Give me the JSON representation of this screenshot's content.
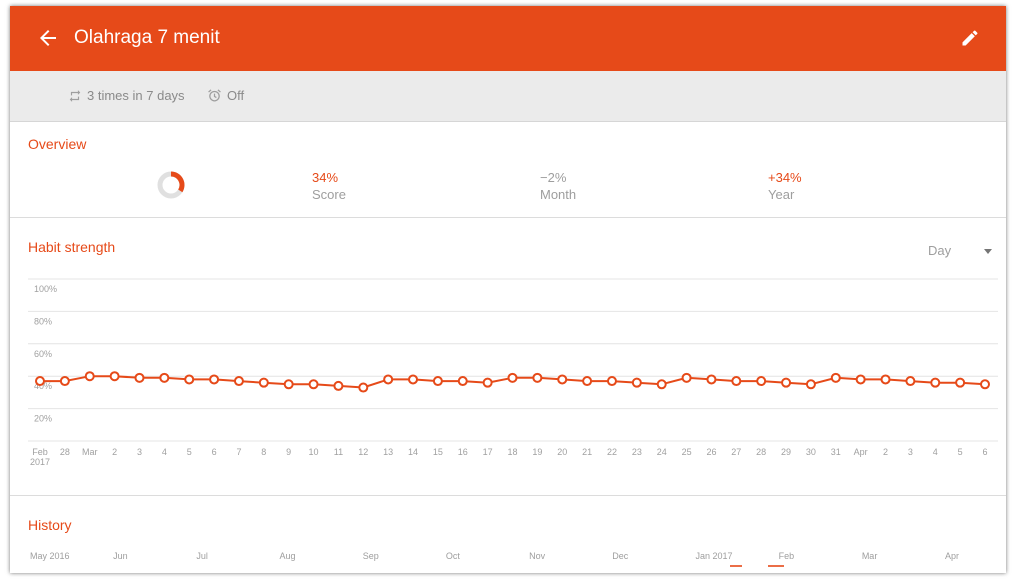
{
  "app_bar": {
    "title": "Olahraga 7 menit",
    "back_icon": "arrow-left-icon",
    "edit_icon": "pencil-icon",
    "color": "#e64a19"
  },
  "subheader": {
    "frequency": "3 times in 7 days",
    "frequency_icon": "repeat-icon",
    "reminder": "Off",
    "reminder_icon": "alarm-clock-icon"
  },
  "overview": {
    "title": "Overview",
    "score_fraction": 0.34,
    "stats": [
      {
        "value": "34%",
        "label": "Score",
        "accent": true
      },
      {
        "value": "−2%",
        "label": "Month",
        "accent": false
      },
      {
        "value": "+34%",
        "label": "Year",
        "accent": true
      }
    ]
  },
  "habit_strength": {
    "title": "Habit strength",
    "interval": "Day",
    "chart_data": {
      "type": "line",
      "y_tick_labels": [
        "100%",
        "80%",
        "60%",
        "40%",
        "20%"
      ],
      "ylim": [
        0,
        100
      ],
      "x_labels": [
        "Feb\n2017",
        "28",
        "Mar",
        "2",
        "3",
        "4",
        "5",
        "6",
        "7",
        "8",
        "9",
        "10",
        "11",
        "12",
        "13",
        "14",
        "15",
        "16",
        "17",
        "18",
        "19",
        "20",
        "21",
        "22",
        "23",
        "24",
        "25",
        "26",
        "27",
        "28",
        "29",
        "30",
        "31",
        "Apr",
        "2",
        "3",
        "4",
        "5",
        "6"
      ],
      "values": [
        37,
        37,
        40,
        40,
        39,
        39,
        38,
        38,
        37,
        36,
        35,
        35,
        34,
        33,
        38,
        38,
        37,
        37,
        36,
        39,
        39,
        38,
        37,
        37,
        36,
        35,
        39,
        38,
        37,
        37,
        36,
        35,
        39,
        38,
        38,
        37,
        36,
        36,
        35
      ],
      "color": "#e64a19",
      "grid": true
    }
  },
  "history": {
    "title": "History",
    "months": [
      "May 2016",
      "Jun",
      "Jul",
      "Aug",
      "Sep",
      "Oct",
      "Nov",
      "Dec",
      "Jan 2017",
      "Feb",
      "Mar",
      "Apr"
    ]
  }
}
